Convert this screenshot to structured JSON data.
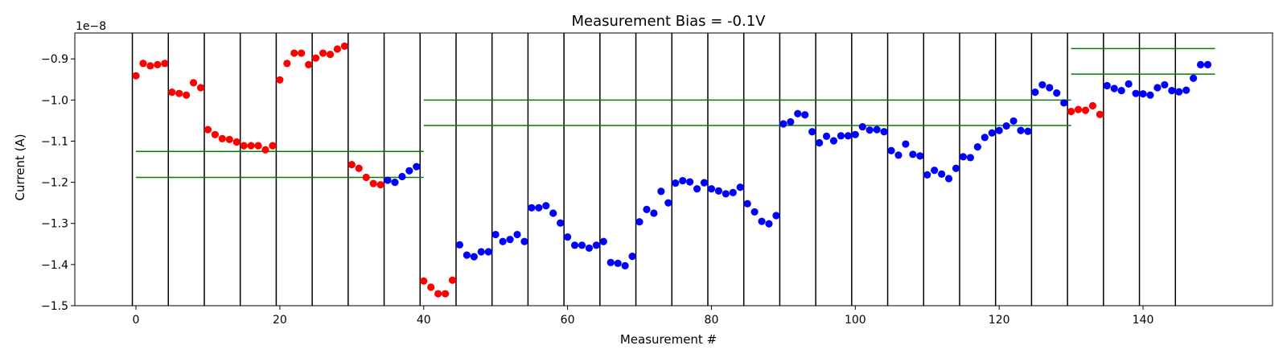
{
  "chart_data": {
    "type": "scatter",
    "title": "Measurement Bias = -0.1V",
    "xlabel": "Measurement #",
    "ylabel": "Current (A)",
    "y_offset_label": "1e−8",
    "y_scale_exponent": -8,
    "xlim": [
      -8.5,
      158
    ],
    "ylim": [
      -1.5,
      -0.837
    ],
    "xticks": [
      0,
      20,
      40,
      60,
      80,
      100,
      120,
      140
    ],
    "yticks": [
      -1.5,
      -1.4,
      -1.3,
      -1.2,
      -1.1,
      -1.0,
      -0.9
    ],
    "ytick_labels": [
      "−1.5",
      "−1.4",
      "−1.3",
      "−1.2",
      "−1.1",
      "−1.0",
      "−0.9"
    ],
    "grid": false,
    "legend": "none",
    "colors": {
      "red": "#ff0000",
      "blue": "#0000ff",
      "band": "#008000",
      "divider": "#000000"
    },
    "dividers": [
      -0.5,
      4.5,
      9.5,
      14.5,
      19.5,
      24.5,
      29.5,
      34.5,
      39.5,
      44.5,
      49.5,
      54.5,
      59.5,
      64.5,
      69.5,
      74.5,
      79.5,
      84.5,
      89.5,
      94.5,
      99.5,
      104.5,
      109.5,
      114.5,
      119.5,
      124.5,
      129.5,
      134.5,
      139.5,
      144.5
    ],
    "bands": [
      {
        "x_start": 0,
        "x_end": 40,
        "upper": -1.125,
        "lower": -1.188
      },
      {
        "x_start": 40,
        "x_end": 130,
        "upper": -1.0,
        "lower": -1.062
      },
      {
        "x_start": 130,
        "x_end": 150,
        "upper": -0.875,
        "lower": -0.937
      }
    ],
    "series": [
      {
        "color": "red",
        "x": [
          0,
          1,
          2,
          3,
          4,
          5,
          6,
          7,
          8,
          9,
          10,
          11,
          12,
          13,
          14,
          15,
          16,
          17,
          18,
          19,
          20,
          21,
          22,
          23,
          24,
          25,
          26,
          27,
          28,
          29,
          30,
          31,
          32,
          33,
          34,
          40,
          41,
          42,
          43,
          44,
          130,
          131,
          132,
          133,
          134
        ],
        "y": [
          -0.941,
          -0.911,
          -0.917,
          -0.914,
          -0.911,
          -0.981,
          -0.984,
          -0.988,
          -0.958,
          -0.97,
          -1.072,
          -1.084,
          -1.094,
          -1.096,
          -1.102,
          -1.111,
          -1.111,
          -1.111,
          -1.121,
          -1.111,
          -0.951,
          -0.911,
          -0.886,
          -0.886,
          -0.914,
          -0.898,
          -0.886,
          -0.889,
          -0.876,
          -0.869,
          -1.157,
          -1.166,
          -1.188,
          -1.203,
          -1.206,
          -1.44,
          -1.455,
          -1.471,
          -1.471,
          -1.438,
          -1.028,
          -1.023,
          -1.025,
          -1.014,
          -1.035
        ]
      },
      {
        "color": "blue",
        "x": [
          35,
          36,
          37,
          38,
          39,
          45,
          46,
          47,
          48,
          49,
          50,
          51,
          52,
          53,
          54,
          55,
          56,
          57,
          58,
          59,
          60,
          61,
          62,
          63,
          64,
          65,
          66,
          67,
          68,
          69,
          70,
          71,
          72,
          73,
          74,
          75,
          76,
          77,
          78,
          79,
          80,
          81,
          82,
          83,
          84,
          85,
          86,
          87,
          88,
          89,
          90,
          91,
          92,
          93,
          94,
          95,
          96,
          97,
          98,
          99,
          100,
          101,
          102,
          103,
          104,
          105,
          106,
          107,
          108,
          109,
          110,
          111,
          112,
          113,
          114,
          115,
          116,
          117,
          118,
          119,
          120,
          121,
          122,
          123,
          124,
          125,
          126,
          127,
          128,
          129,
          135,
          136,
          137,
          138,
          139,
          140,
          141,
          142,
          143,
          144,
          145,
          146,
          147,
          148,
          149
        ],
        "y": [
          -1.195,
          -1.2,
          -1.186,
          -1.172,
          -1.162,
          -1.352,
          -1.377,
          -1.381,
          -1.369,
          -1.369,
          -1.327,
          -1.344,
          -1.339,
          -1.327,
          -1.344,
          -1.262,
          -1.262,
          -1.257,
          -1.275,
          -1.299,
          -1.333,
          -1.353,
          -1.353,
          -1.36,
          -1.353,
          -1.344,
          -1.395,
          -1.397,
          -1.403,
          -1.38,
          -1.296,
          -1.266,
          -1.275,
          -1.222,
          -1.25,
          -1.202,
          -1.196,
          -1.199,
          -1.216,
          -1.201,
          -1.216,
          -1.221,
          -1.228,
          -1.225,
          -1.212,
          -1.252,
          -1.272,
          -1.295,
          -1.301,
          -1.281,
          -1.058,
          -1.053,
          -1.033,
          -1.036,
          -1.077,
          -1.104,
          -1.088,
          -1.099,
          -1.087,
          -1.087,
          -1.084,
          -1.065,
          -1.073,
          -1.072,
          -1.077,
          -1.123,
          -1.134,
          -1.107,
          -1.132,
          -1.136,
          -1.182,
          -1.171,
          -1.18,
          -1.191,
          -1.166,
          -1.138,
          -1.14,
          -1.114,
          -1.091,
          -1.08,
          -1.074,
          -1.063,
          -1.051,
          -1.074,
          -1.076,
          -0.981,
          -0.963,
          -0.97,
          -0.983,
          -1.007,
          -0.965,
          -0.972,
          -0.977,
          -0.961,
          -0.984,
          -0.985,
          -0.988,
          -0.97,
          -0.963,
          -0.977,
          -0.98,
          -0.976,
          -0.947,
          -0.914,
          -0.914
        ]
      }
    ]
  }
}
